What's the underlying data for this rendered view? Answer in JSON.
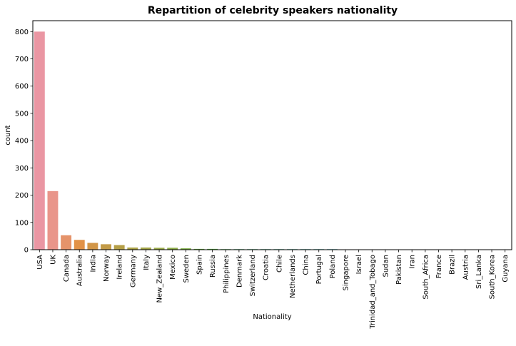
{
  "chart_data": {
    "type": "bar",
    "title": "Repartition of celebrity speakers nationality",
    "xlabel": "Nationality",
    "ylabel": "count",
    "ylim": [
      0,
      840
    ],
    "yticks": [
      0,
      100,
      200,
      300,
      400,
      500,
      600,
      700,
      800
    ],
    "grid": false,
    "categories": [
      "USA",
      "UK",
      "Canada",
      "Australia",
      "India",
      "Norway",
      "Ireland",
      "Germany",
      "Italy",
      "New_Zealand",
      "Mexico",
      "Sweden",
      "Spain",
      "Russia",
      "Philippines",
      "Denmark",
      "Switzerland",
      "Croatia",
      "Chile",
      "Netherlands",
      "China",
      "Portugal",
      "Poland",
      "Singapore",
      "Israel",
      "Trinidad_and_Tobago",
      "Sudan",
      "Pakistan",
      "Iran",
      "South_Africa",
      "France",
      "Brazil",
      "Austria",
      "Sri_Lanka",
      "South_Korea",
      "Guyana"
    ],
    "values": [
      800,
      215,
      53,
      36,
      25,
      20,
      17,
      8,
      8,
      7,
      7,
      5,
      3,
      3,
      2,
      2,
      2,
      2,
      2,
      2,
      2,
      2,
      2,
      1,
      1,
      1,
      1,
      1,
      1,
      1,
      1,
      1,
      1,
      1,
      1,
      1
    ],
    "colors": [
      "#ea96a3",
      "#e9958a",
      "#e5936a",
      "#e29247",
      "#d29647",
      "#c39b47",
      "#b59f47",
      "#aba247",
      "#a2a447",
      "#97a746",
      "#8baa46",
      "#7cad46",
      "#6bb046",
      "#5cb247",
      "#4db350",
      "#48b16d",
      "#49b079",
      "#4aaf86",
      "#4aae8f",
      "#4aad95",
      "#4aac9c",
      "#4bacA3",
      "#4caaac",
      "#4eaab3",
      "#50a8bc",
      "#53a6c4",
      "#5aa4cf",
      "#6aa1da",
      "#7e9ee1",
      "#9099e8",
      "#a494ef",
      "#b88ff0",
      "#cc8aea",
      "#dd87df",
      "#e68dd3",
      "#e991c4"
    ]
  }
}
